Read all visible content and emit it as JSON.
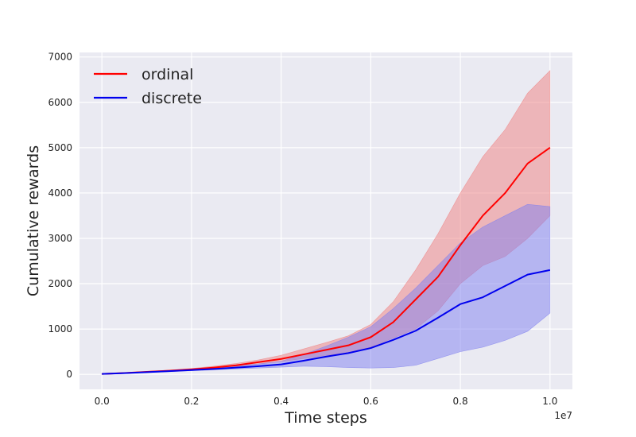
{
  "chart_data": {
    "type": "line",
    "xlabel": "Time steps",
    "ylabel": "Cumulative rewards",
    "x_offset_label": "1e7",
    "xlim": [
      -0.05,
      1.05
    ],
    "ylim": [
      -330,
      7100
    ],
    "x_ticks": [
      0.0,
      0.2,
      0.4,
      0.6,
      0.8,
      1.0
    ],
    "x_tick_labels": [
      "0.0",
      "0.2",
      "0.4",
      "0.6",
      "0.8",
      "1.0"
    ],
    "y_ticks": [
      0,
      1000,
      2000,
      3000,
      4000,
      5000,
      6000,
      7000
    ],
    "y_tick_labels": [
      "0",
      "1000",
      "2000",
      "3000",
      "4000",
      "5000",
      "6000",
      "7000"
    ],
    "grid": true,
    "legend_position": "top-left",
    "series": [
      {
        "name": "ordinal",
        "color": "#ff0000",
        "band_color": "#f08080",
        "points": [
          [
            0.0,
            10
          ],
          [
            0.05,
            30
          ],
          [
            0.1,
            55
          ],
          [
            0.15,
            80
          ],
          [
            0.2,
            110
          ],
          [
            0.25,
            150
          ],
          [
            0.3,
            200
          ],
          [
            0.35,
            270
          ],
          [
            0.4,
            340
          ],
          [
            0.45,
            440
          ],
          [
            0.5,
            540
          ],
          [
            0.55,
            640
          ],
          [
            0.6,
            820
          ],
          [
            0.65,
            1150
          ],
          [
            0.7,
            1650
          ],
          [
            0.75,
            2150
          ],
          [
            0.8,
            2850
          ],
          [
            0.85,
            3500
          ],
          [
            0.9,
            4000
          ],
          [
            0.95,
            4650
          ],
          [
            1.0,
            5000
          ]
        ],
        "lower": [
          [
            0.0,
            5
          ],
          [
            0.05,
            25
          ],
          [
            0.1,
            45
          ],
          [
            0.15,
            70
          ],
          [
            0.2,
            95
          ],
          [
            0.25,
            130
          ],
          [
            0.3,
            170
          ],
          [
            0.35,
            230
          ],
          [
            0.4,
            280
          ],
          [
            0.45,
            350
          ],
          [
            0.5,
            420
          ],
          [
            0.55,
            480
          ],
          [
            0.6,
            600
          ],
          [
            0.65,
            800
          ],
          [
            0.7,
            1000
          ],
          [
            0.75,
            1400
          ],
          [
            0.8,
            2000
          ],
          [
            0.85,
            2400
          ],
          [
            0.9,
            2600
          ],
          [
            0.95,
            3000
          ],
          [
            1.0,
            3500
          ]
        ],
        "upper": [
          [
            0.0,
            15
          ],
          [
            0.05,
            35
          ],
          [
            0.1,
            65
          ],
          [
            0.15,
            95
          ],
          [
            0.2,
            130
          ],
          [
            0.25,
            180
          ],
          [
            0.3,
            240
          ],
          [
            0.35,
            320
          ],
          [
            0.4,
            420
          ],
          [
            0.45,
            560
          ],
          [
            0.5,
            700
          ],
          [
            0.55,
            850
          ],
          [
            0.6,
            1100
          ],
          [
            0.65,
            1600
          ],
          [
            0.7,
            2300
          ],
          [
            0.75,
            3100
          ],
          [
            0.8,
            4000
          ],
          [
            0.85,
            4800
          ],
          [
            0.9,
            5400
          ],
          [
            0.95,
            6200
          ],
          [
            1.0,
            6700
          ]
        ]
      },
      {
        "name": "discrete",
        "color": "#0000ee",
        "band_color": "#8080f0",
        "points": [
          [
            0.0,
            10
          ],
          [
            0.05,
            28
          ],
          [
            0.1,
            50
          ],
          [
            0.15,
            70
          ],
          [
            0.2,
            95
          ],
          [
            0.25,
            120
          ],
          [
            0.3,
            150
          ],
          [
            0.35,
            180
          ],
          [
            0.4,
            220
          ],
          [
            0.45,
            300
          ],
          [
            0.5,
            390
          ],
          [
            0.55,
            470
          ],
          [
            0.6,
            580
          ],
          [
            0.65,
            760
          ],
          [
            0.7,
            960
          ],
          [
            0.75,
            1250
          ],
          [
            0.8,
            1550
          ],
          [
            0.85,
            1700
          ],
          [
            0.9,
            1950
          ],
          [
            0.95,
            2200
          ],
          [
            1.0,
            2300
          ]
        ],
        "lower": [
          [
            0.0,
            5
          ],
          [
            0.05,
            22
          ],
          [
            0.1,
            40
          ],
          [
            0.15,
            60
          ],
          [
            0.2,
            80
          ],
          [
            0.25,
            100
          ],
          [
            0.3,
            120
          ],
          [
            0.35,
            140
          ],
          [
            0.4,
            160
          ],
          [
            0.45,
            180
          ],
          [
            0.5,
            170
          ],
          [
            0.55,
            150
          ],
          [
            0.6,
            140
          ],
          [
            0.65,
            150
          ],
          [
            0.7,
            200
          ],
          [
            0.75,
            350
          ],
          [
            0.8,
            500
          ],
          [
            0.85,
            600
          ],
          [
            0.9,
            750
          ],
          [
            0.95,
            950
          ],
          [
            1.0,
            1350
          ]
        ],
        "upper": [
          [
            0.0,
            15
          ],
          [
            0.05,
            35
          ],
          [
            0.1,
            60
          ],
          [
            0.15,
            85
          ],
          [
            0.2,
            115
          ],
          [
            0.25,
            150
          ],
          [
            0.3,
            190
          ],
          [
            0.35,
            230
          ],
          [
            0.4,
            290
          ],
          [
            0.45,
            440
          ],
          [
            0.5,
            620
          ],
          [
            0.55,
            820
          ],
          [
            0.6,
            1050
          ],
          [
            0.65,
            1450
          ],
          [
            0.7,
            1900
          ],
          [
            0.75,
            2400
          ],
          [
            0.8,
            2900
          ],
          [
            0.85,
            3250
          ],
          [
            0.9,
            3500
          ],
          [
            0.95,
            3750
          ],
          [
            1.0,
            3700
          ]
        ]
      }
    ]
  }
}
